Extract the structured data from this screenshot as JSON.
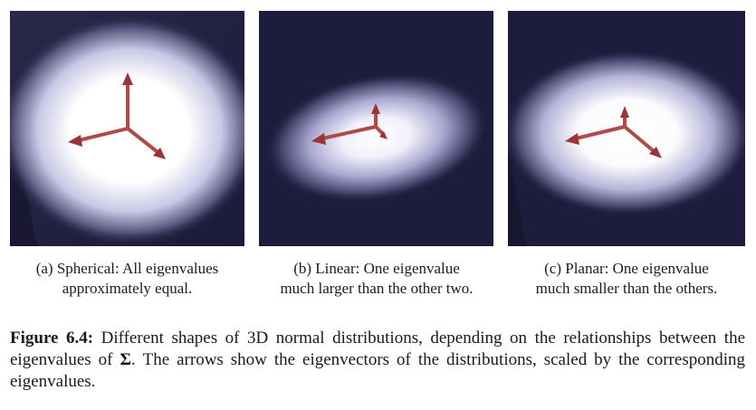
{
  "panels": [
    {
      "label": "(a)",
      "line1": "Spherical: All eigenvalues",
      "line2": "approximately equal."
    },
    {
      "label": "(b)",
      "line1": "Linear: One eigenvalue",
      "line2": "much larger than the other two."
    },
    {
      "label": "(c)",
      "line1": "Planar: One eigenvalue",
      "line2": "much smaller than the others."
    }
  ],
  "figure": {
    "label": "Figure 6.4:",
    "text": "Different shapes of 3D normal distributions, depending on the relationships between the eigenvalues of",
    "symbol": "Σ",
    "text2": ". The arrows show the eigenvectors of the distributions, scaled by the corresponding eigenvalues."
  },
  "colors": {
    "background": "#1f1d3e",
    "glow": "#ffffff",
    "arrow": "#b04a4a"
  }
}
